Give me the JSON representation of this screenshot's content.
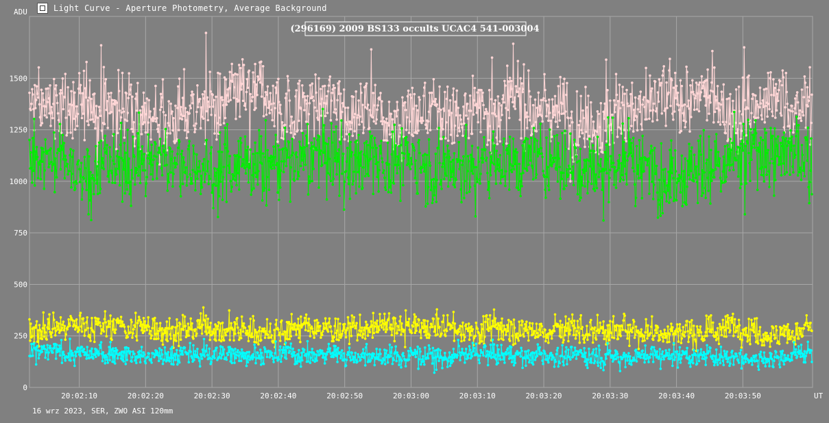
{
  "window": {
    "title": "Light Curve - Aperture Photometry, Average Background",
    "icon": "light-curve-app-icon"
  },
  "footer": {
    "text": "16 wrz 2023, SER, ZWO ASI 120mm"
  },
  "colors": {
    "background": "#808080",
    "grid": "#a8a8a8",
    "target": "#ffd6d6",
    "comparison": "#00ee00",
    "background_yellow": "#ffff00",
    "background_cyan": "#00ffff"
  },
  "chart_data": {
    "type": "line",
    "title": "(296169) 2009 BS133 occults UCAC4 541-003004",
    "ylabel": "ADU",
    "xlabel": "UT",
    "ylim": [
      0,
      1800
    ],
    "xlim": [
      "20:02:02.5",
      "20:04:00.5"
    ],
    "y_ticks": [
      0,
      250,
      500,
      750,
      1000,
      1250,
      1500
    ],
    "x_ticks": [
      "20:02:10",
      "20:02:20",
      "20:02:30",
      "20:02:40",
      "20:02:50",
      "20:03:00",
      "20:03:10",
      "20:03:20",
      "20:03:30",
      "20:03:40",
      "20:03:50"
    ],
    "grid": true,
    "frame_interval_s": 0.1,
    "series": [
      {
        "color": "#ffd6d6",
        "baseline": 1360,
        "noise": 85,
        "spikes_up": [
          1660,
          1720,
          1640,
          1600,
          1590,
          1650
        ],
        "spikes_down": [
          1020,
          1090,
          1100,
          1000,
          1150
        ],
        "summary": "noisy ~1250-1550"
      },
      {
        "color": "#00ee00",
        "baseline": 1100,
        "noise": 85,
        "spikes_down": [
          840,
          870,
          930,
          830,
          810,
          840
        ],
        "summary": "noisy ~950-1250"
      },
      {
        "color": "#ffff00",
        "baseline": 285,
        "noise": 35,
        "summary": "noisy ~200-400"
      },
      {
        "color": "#00ffff",
        "baseline": 160,
        "noise": 25,
        "summary": "noisy ~80-250"
      }
    ]
  }
}
